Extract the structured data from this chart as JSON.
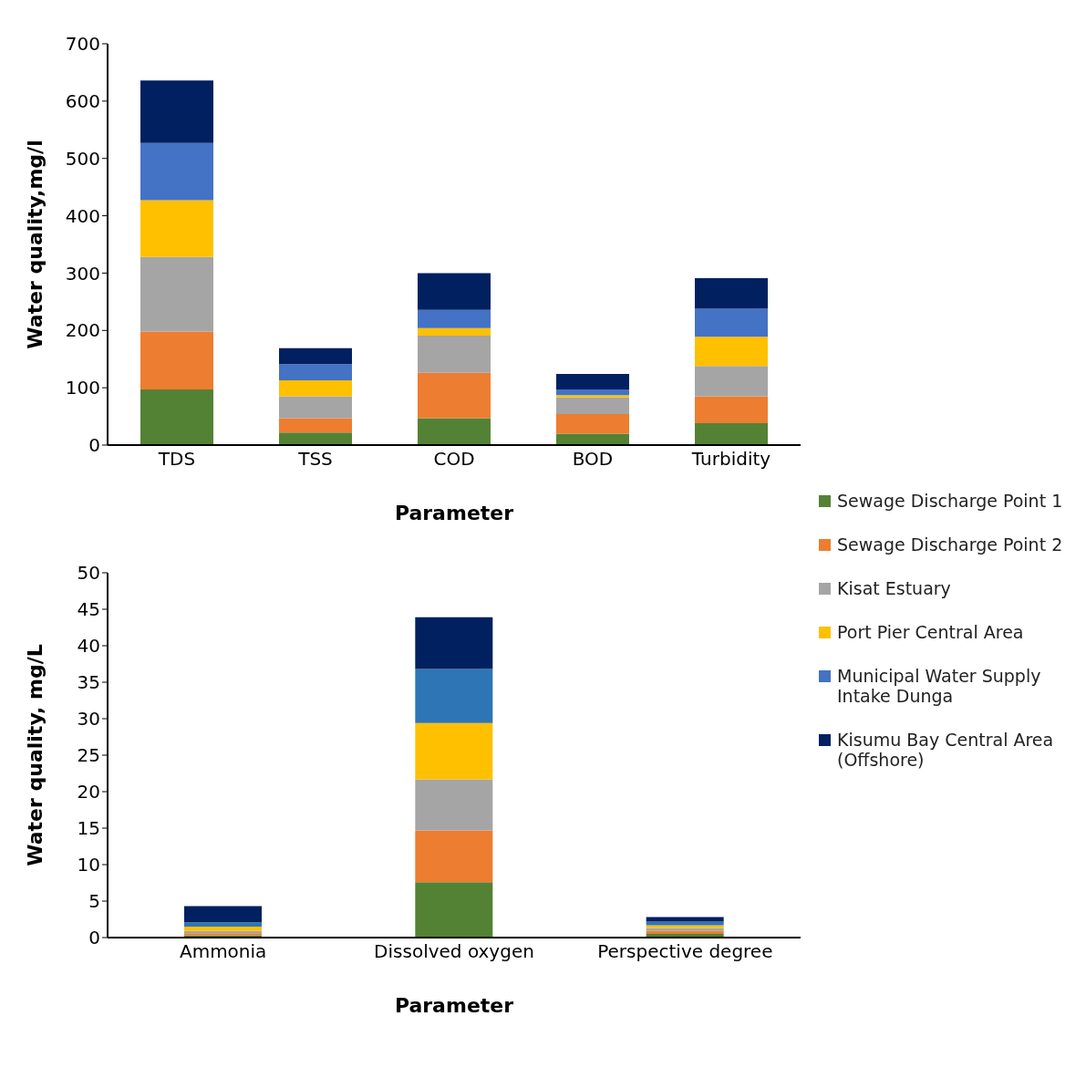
{
  "chart_data": [
    {
      "type": "bar",
      "stacked": true,
      "xlabel": "Parameter",
      "ylabel": "Water quality,mg/l",
      "categories": [
        "TDS",
        "TSS",
        "COD",
        "BOD",
        "Turbidity"
      ],
      "ylim": [
        0,
        700
      ],
      "yticks": [
        0,
        100,
        200,
        300,
        400,
        500,
        600,
        700
      ],
      "grid": false,
      "legend": "right",
      "series": [
        {
          "name": "Sewage Discharge Point 1",
          "color": "#548235",
          "values": [
            97,
            22,
            47,
            20,
            38
          ]
        },
        {
          "name": "Sewage Discharge Point 2",
          "color": "#ed7d31",
          "values": [
            101,
            25,
            79,
            34,
            47
          ]
        },
        {
          "name": "Kisat Estuary",
          "color": "#a5a5a5",
          "values": [
            130,
            38,
            65,
            29,
            53
          ]
        },
        {
          "name": "Port Pier Central Area",
          "color": "#ffc000",
          "values": [
            99,
            28,
            13,
            4,
            51
          ]
        },
        {
          "name": "Municipal Water Supply Intake Dunga",
          "color": "#4472c4",
          "values": [
            100,
            28,
            32,
            10,
            49
          ]
        },
        {
          "name": "Kisumu Bay Central Area (Offshore)",
          "color": "#002060",
          "values": [
            109,
            28,
            64,
            27,
            53
          ]
        }
      ]
    },
    {
      "type": "bar",
      "stacked": true,
      "xlabel": "Parameter",
      "ylabel": "Water quality, mg/L",
      "categories": [
        "Ammonia",
        "Dissolved oxygen",
        "Perspective degree"
      ],
      "ylim": [
        0,
        50
      ],
      "yticks": [
        0,
        5,
        10,
        15,
        20,
        25,
        30,
        35,
        40,
        45,
        50
      ],
      "grid": false,
      "series": [
        {
          "color": "#548235",
          "values": [
            0.3,
            7.6,
            0.5
          ]
        },
        {
          "color": "#ed7d31",
          "values": [
            0.3,
            7.1,
            0.4
          ]
        },
        {
          "color": "#a5a5a5",
          "values": [
            0.3,
            7.0,
            0.4
          ]
        },
        {
          "color": "#ffc000",
          "values": [
            0.6,
            7.7,
            0.4
          ]
        },
        {
          "color": "#2e75b6",
          "values": [
            0.6,
            7.4,
            0.5
          ]
        },
        {
          "color": "#002060",
          "values": [
            2.2,
            7.1,
            0.6
          ]
        }
      ]
    }
  ]
}
